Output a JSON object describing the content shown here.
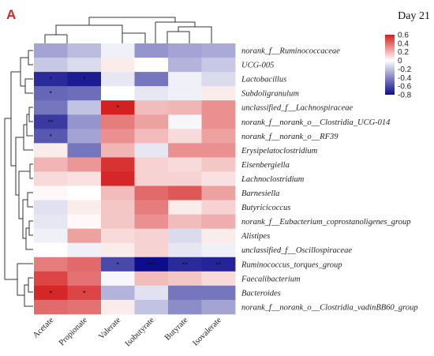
{
  "panel_label": "A",
  "day_label": "Day 21",
  "colors": {
    "low": "#0c0c8c",
    "mid": "#ffffff",
    "high": "#d42020"
  },
  "chart_data": {
    "type": "heatmap",
    "title": "",
    "columns": [
      "Acetate",
      "Propionate",
      "Valerate",
      "Isobutyrate",
      "Butyrate",
      "Isovalerate"
    ],
    "rows": [
      "norank_f__Ruminococcaceae",
      "UCG-005",
      "Lactobacillus",
      "Subdoligranulum",
      "unclassified_f__Lachnospiraceae",
      "norank_f__norank_o__Clostridia_UCG-014",
      "norank_f__norank_o__RF39",
      "Erysipelatoclostridium",
      "Eisenbergiella",
      "Lachnoclostridium",
      "Barnesiella",
      "Butyricicoccus",
      "norank_f__Eubacterium_coprostanoligenes_group",
      "Alistipes",
      "unclassified_f__Oscillospiraceae",
      "Ruminococcus_torques_group",
      "Faecalibacterium",
      "Bacteroides",
      "norank_f__norank_o__Clostridia_vadinBB60_group"
    ],
    "values": [
      [
        -0.3,
        -0.22,
        -0.05,
        -0.35,
        -0.3,
        -0.28
      ],
      [
        -0.18,
        -0.12,
        0.05,
        0.0,
        -0.25,
        -0.18
      ],
      [
        -0.7,
        -0.75,
        -0.08,
        -0.45,
        -0.05,
        -0.12
      ],
      [
        -0.5,
        -0.48,
        0.0,
        -0.08,
        -0.05,
        0.05
      ],
      [
        -0.45,
        -0.2,
        0.6,
        0.18,
        0.2,
        0.3
      ],
      [
        -0.65,
        -0.35,
        0.35,
        0.25,
        -0.03,
        0.3
      ],
      [
        -0.55,
        -0.3,
        0.3,
        0.18,
        0.1,
        0.25
      ],
      [
        0.05,
        -0.45,
        0.2,
        -0.08,
        0.3,
        0.3
      ],
      [
        0.2,
        0.28,
        0.55,
        0.12,
        0.1,
        0.15
      ],
      [
        0.1,
        0.08,
        0.58,
        0.12,
        0.12,
        0.08
      ],
      [
        0.02,
        0.0,
        0.18,
        0.4,
        0.45,
        0.25
      ],
      [
        -0.1,
        0.05,
        0.15,
        0.35,
        0.05,
        0.12
      ],
      [
        -0.08,
        0.02,
        0.15,
        0.3,
        0.18,
        0.22
      ],
      [
        -0.05,
        0.25,
        0.1,
        0.12,
        -0.12,
        0.05
      ],
      [
        0.0,
        -0.05,
        0.05,
        0.12,
        -0.08,
        -0.05
      ],
      [
        0.35,
        0.4,
        -0.6,
        -0.8,
        -0.7,
        -0.72
      ],
      [
        0.5,
        0.38,
        -0.03,
        0.18,
        0.15,
        0.1
      ],
      [
        0.58,
        0.5,
        -0.25,
        -0.1,
        -0.45,
        -0.45
      ],
      [
        0.4,
        0.38,
        0.05,
        -0.2,
        -0.38,
        -0.3
      ]
    ],
    "significance": [
      [
        "",
        "",
        "",
        "",
        "",
        ""
      ],
      [
        "",
        "",
        "",
        "",
        "",
        ""
      ],
      [
        "*",
        "*",
        "",
        "",
        "",
        ""
      ],
      [
        "*",
        "",
        "",
        "",
        "",
        ""
      ],
      [
        "",
        "",
        "*",
        "",
        "",
        ""
      ],
      [
        "**",
        "",
        "",
        "",
        "",
        ""
      ],
      [
        "*",
        "",
        "",
        "",
        "",
        ""
      ],
      [
        "",
        "",
        "",
        "",
        "",
        ""
      ],
      [
        "",
        "",
        "",
        "",
        "",
        ""
      ],
      [
        "",
        "",
        "",
        "",
        "",
        ""
      ],
      [
        "",
        "",
        "",
        "",
        "",
        ""
      ],
      [
        "",
        "",
        "",
        "",
        "",
        ""
      ],
      [
        "",
        "",
        "",
        "",
        "",
        ""
      ],
      [
        "",
        "",
        "",
        "",
        "",
        ""
      ],
      [
        "",
        "",
        "",
        "",
        "",
        ""
      ],
      [
        "",
        "",
        "*",
        "***",
        "**",
        "**"
      ],
      [
        "",
        "",
        "",
        "",
        "",
        ""
      ],
      [
        "*",
        "*",
        "",
        "",
        "",
        ""
      ],
      [
        "",
        "",
        "",
        "",
        "",
        ""
      ]
    ],
    "color_scale": {
      "min": -0.8,
      "max": 0.6,
      "ticks": [
        "0.6",
        "0.4",
        "0.2",
        "0",
        "-0.2",
        "-0.4",
        "-0.6",
        "-0.8"
      ]
    },
    "legend_position": "top-right"
  }
}
